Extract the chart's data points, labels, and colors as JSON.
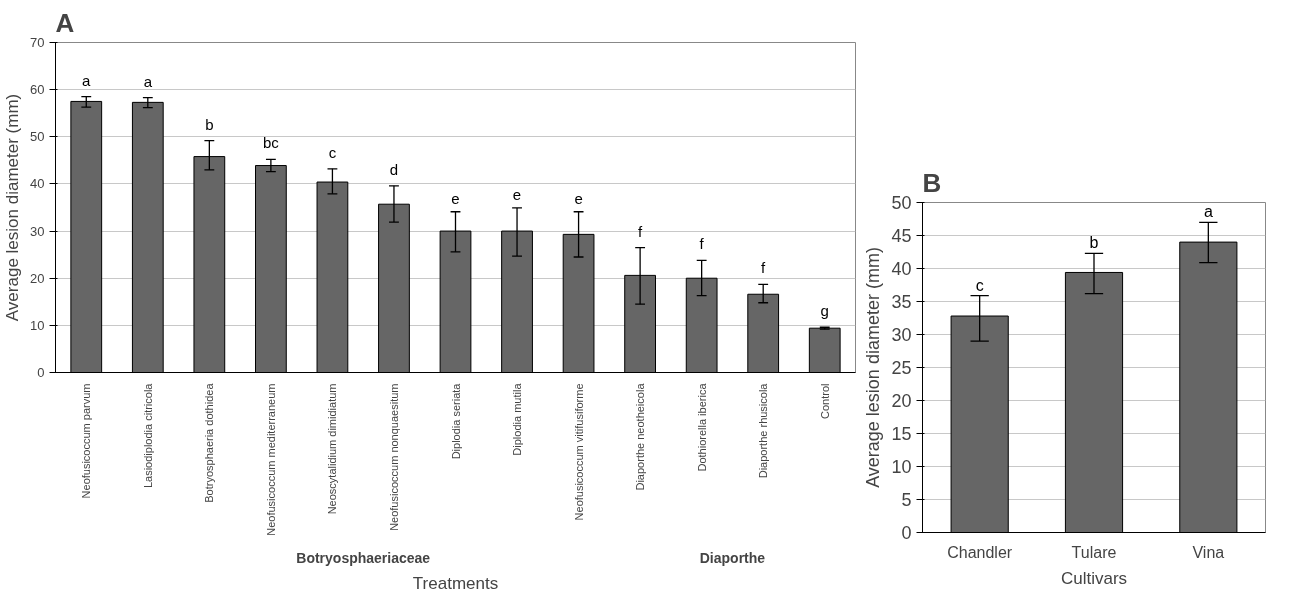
{
  "chart_data": [
    {
      "type": "bar",
      "title": "A",
      "xlabel": "Treatments",
      "ylabel": "Average lesion diameter (mm)",
      "categories": [
        "Neofusicoccum parvum",
        "Lasiodiplodia citricola",
        "Botryosphaeria dothidea",
        "Neofusicoccum mediterraneum",
        "Neoscytalidium dimidiatum",
        "Neofusicoccum nonquaesitum",
        "Diplodia seriata",
        "Diplodia mutila",
        "Neofusicoccum vitifusiforme",
        "Diaporthe neotheicola",
        "Dothiorella iberica",
        "Diaporthe rhusicola",
        "Control"
      ],
      "values": [
        57.5,
        57.3,
        45.8,
        43.9,
        40.4,
        35.7,
        30.0,
        30.0,
        29.3,
        20.6,
        20.0,
        16.6,
        9.4
      ],
      "errors": [
        [
          56.3,
          58.5
        ],
        [
          56.2,
          58.3
        ],
        [
          43.0,
          49.2
        ],
        [
          42.6,
          45.2
        ],
        [
          37.9,
          43.2
        ],
        [
          31.9,
          39.6
        ],
        [
          25.6,
          34.1
        ],
        [
          24.7,
          34.9
        ],
        [
          24.5,
          34.1
        ],
        [
          14.5,
          26.5
        ],
        [
          16.3,
          23.8
        ],
        [
          14.8,
          18.7
        ],
        [
          9.2,
          9.6
        ]
      ],
      "color": "#666666",
      "ylim": [
        0,
        70
      ],
      "yticks": [
        0,
        10,
        20,
        30,
        40,
        50,
        60,
        70
      ],
      "grid": "y",
      "annotations": [
        {
          "text": "a",
          "x": "Neofusicoccum parvum",
          "y": 58.5
        },
        {
          "text": "a",
          "x": "Lasiodiplodia citricola",
          "y": 58.3
        },
        {
          "text": "b",
          "x": "Botryosphaeria dothidea",
          "y": 49.2
        },
        {
          "text": "bc",
          "x": "Neofusicoccum mediterraneum",
          "y": 45.2
        },
        {
          "text": "c",
          "x": "Neoscytalidium dimidiatum",
          "y": 43.2
        },
        {
          "text": "d",
          "x": "Neofusicoccum nonquaesitum",
          "y": 39.6
        },
        {
          "text": "e",
          "x": "Diplodia seriata",
          "y": 34.1
        },
        {
          "text": "e",
          "x": "Diplodia mutila",
          "y": 34.9
        },
        {
          "text": "e",
          "x": "Neofusicoccum vitifusiforme",
          "y": 34.1
        },
        {
          "text": "f",
          "x": "Diaporthe neotheicola",
          "y": 26.5
        },
        {
          "text": "f",
          "x": "Dothiorella iberica",
          "y": 23.8
        },
        {
          "text": "f",
          "x": "Diaporthe rhusicola",
          "y": 18.7
        },
        {
          "text": "g",
          "x": "Control",
          "y": 9.6
        },
        "Botryosphaeriaceae",
        "Diaporthe"
      ]
    },
    {
      "type": "bar",
      "title": "B",
      "xlabel": "Cultivars",
      "ylabel": "Average lesion diameter (mm)",
      "categories": [
        "Chandler",
        "Tulare",
        "Vina"
      ],
      "values": [
        32.8,
        39.4,
        44.0
      ],
      "errors": [
        [
          29.0,
          35.9
        ],
        [
          36.2,
          42.3
        ],
        [
          40.9,
          47.0
        ]
      ],
      "color": "#666666",
      "ylim": [
        0,
        50
      ],
      "yticks": [
        0,
        5,
        10,
        15,
        20,
        25,
        30,
        35,
        40,
        45,
        50
      ],
      "grid": "y",
      "annotations": [
        {
          "text": "c",
          "x": "Chandler",
          "y": 35.9
        },
        {
          "text": "b",
          "x": "Tulare",
          "y": 42.3
        },
        {
          "text": "a",
          "x": "Vina",
          "y": 47.0
        }
      ]
    }
  ]
}
